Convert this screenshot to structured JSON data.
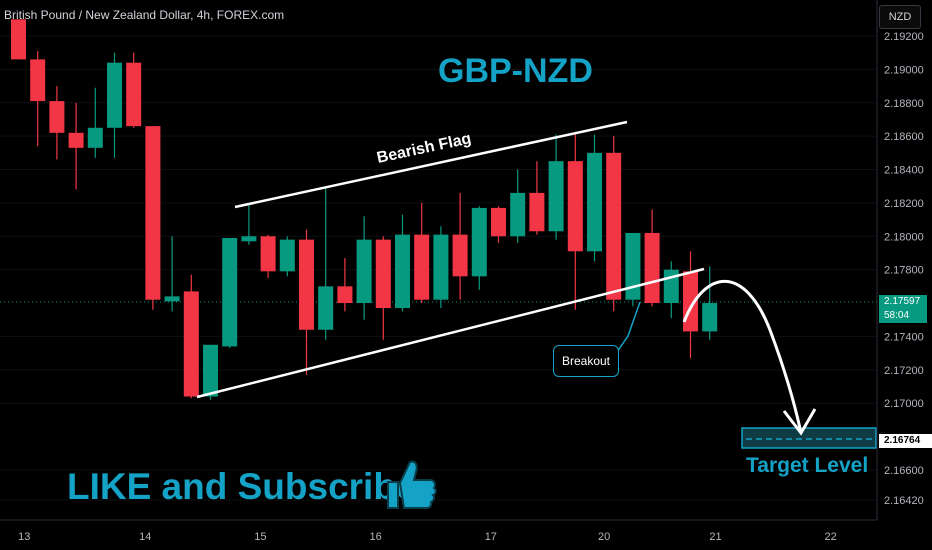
{
  "header": {
    "symbol_title": "British Pound / New Zealand Dollar, 4h, FOREX.com",
    "currency_button": "NZD"
  },
  "annotations": {
    "main_title": "GBP-NZD",
    "flag_label": "Bearish Flag",
    "breakout_label": "Breakout",
    "target_label": "Target Level",
    "cta": "LIKE and Subscribe"
  },
  "price_tags": {
    "last_price": "2.17597",
    "countdown": "58:04",
    "target_price": "2.16764"
  },
  "colors": {
    "bull": "#089981",
    "bear": "#f23645",
    "accent": "#14a3c7",
    "background": "#000000",
    "axis_text": "#b2b5be"
  },
  "icons": [
    "thumbs-up-icon",
    "curved-arrow-icon"
  ],
  "chart_data": {
    "type": "candlestick",
    "title": "GBP-NZD",
    "ylim": [
      2.1624,
      2.193
    ],
    "y_ticks": [
      "2.19200",
      "2.19000",
      "2.18800",
      "2.18600",
      "2.18400",
      "2.18200",
      "2.18000",
      "2.17800",
      "2.17400",
      "2.17200",
      "2.17000",
      "2.16600",
      "2.16420"
    ],
    "x_ticks": [
      {
        "label": "13",
        "pos": 1.3
      },
      {
        "label": "14",
        "pos": 7.6
      },
      {
        "label": "15",
        "pos": 13.6
      },
      {
        "label": "16",
        "pos": 19.6
      },
      {
        "label": "17",
        "pos": 25.6
      },
      {
        "label": "20",
        "pos": 31.5
      },
      {
        "label": "21",
        "pos": 37.3
      },
      {
        "label": "22",
        "pos": 43.3
      }
    ],
    "candles": [
      {
        "o": 2.193,
        "h": 2.193,
        "l": 2.1906,
        "c": 2.1906
      },
      {
        "o": 2.1906,
        "h": 2.1911,
        "l": 2.1854,
        "c": 2.1881
      },
      {
        "o": 2.1881,
        "h": 2.189,
        "l": 2.1846,
        "c": 2.1862
      },
      {
        "o": 2.1862,
        "h": 2.188,
        "l": 2.1828,
        "c": 2.1853
      },
      {
        "o": 2.1853,
        "h": 2.1889,
        "l": 2.1847,
        "c": 2.1865
      },
      {
        "o": 2.1865,
        "h": 2.191,
        "l": 2.1847,
        "c": 2.1904
      },
      {
        "o": 2.1904,
        "h": 2.191,
        "l": 2.1865,
        "c": 2.1866
      },
      {
        "o": 2.1866,
        "h": 2.1866,
        "l": 2.1756,
        "c": 2.1762
      },
      {
        "o": 2.1761,
        "h": 2.18,
        "l": 2.1755,
        "c": 2.1764
      },
      {
        "o": 2.1767,
        "h": 2.1777,
        "l": 2.1703,
        "c": 2.1704
      },
      {
        "o": 2.1704,
        "h": 2.1735,
        "l": 2.1702,
        "c": 2.1735
      },
      {
        "o": 2.1734,
        "h": 2.1799,
        "l": 2.1733,
        "c": 2.1799
      },
      {
        "o": 2.1797,
        "h": 2.182,
        "l": 2.1795,
        "c": 2.18
      },
      {
        "o": 2.18,
        "h": 2.1801,
        "l": 2.1775,
        "c": 2.1779
      },
      {
        "o": 2.1779,
        "h": 2.18,
        "l": 2.1776,
        "c": 2.1798
      },
      {
        "o": 2.1798,
        "h": 2.1804,
        "l": 2.1717,
        "c": 2.1744
      },
      {
        "o": 2.1744,
        "h": 2.183,
        "l": 2.1738,
        "c": 2.177
      },
      {
        "o": 2.177,
        "h": 2.1787,
        "l": 2.1755,
        "c": 2.176
      },
      {
        "o": 2.176,
        "h": 2.1812,
        "l": 2.175,
        "c": 2.1798
      },
      {
        "o": 2.1798,
        "h": 2.18,
        "l": 2.1738,
        "c": 2.1757
      },
      {
        "o": 2.1757,
        "h": 2.1813,
        "l": 2.1755,
        "c": 2.1801
      },
      {
        "o": 2.1801,
        "h": 2.182,
        "l": 2.176,
        "c": 2.1762
      },
      {
        "o": 2.1762,
        "h": 2.1806,
        "l": 2.1757,
        "c": 2.1801
      },
      {
        "o": 2.1801,
        "h": 2.1826,
        "l": 2.1762,
        "c": 2.1776
      },
      {
        "o": 2.1776,
        "h": 2.1818,
        "l": 2.1768,
        "c": 2.1817
      },
      {
        "o": 2.1817,
        "h": 2.1818,
        "l": 2.1796,
        "c": 2.18
      },
      {
        "o": 2.18,
        "h": 2.184,
        "l": 2.1796,
        "c": 2.1826
      },
      {
        "o": 2.1826,
        "h": 2.1845,
        "l": 2.1801,
        "c": 2.1803
      },
      {
        "o": 2.1803,
        "h": 2.1861,
        "l": 2.1798,
        "c": 2.1845
      },
      {
        "o": 2.1845,
        "h": 2.1861,
        "l": 2.1756,
        "c": 2.1791
      },
      {
        "o": 2.1791,
        "h": 2.1861,
        "l": 2.1785,
        "c": 2.185
      },
      {
        "o": 2.185,
        "h": 2.186,
        "l": 2.1755,
        "c": 2.1762
      },
      {
        "o": 2.1762,
        "h": 2.18,
        "l": 2.1758,
        "c": 2.1802
      },
      {
        "o": 2.1802,
        "h": 2.1816,
        "l": 2.1758,
        "c": 2.176
      },
      {
        "o": 2.176,
        "h": 2.1785,
        "l": 2.1751,
        "c": 2.178
      },
      {
        "o": 2.1779,
        "h": 2.1791,
        "l": 2.1727,
        "c": 2.1743
      },
      {
        "o": 2.1743,
        "h": 2.1782,
        "l": 2.1738,
        "c": 2.176
      }
    ],
    "target_level": 2.16764,
    "last_price": 2.17597
  }
}
